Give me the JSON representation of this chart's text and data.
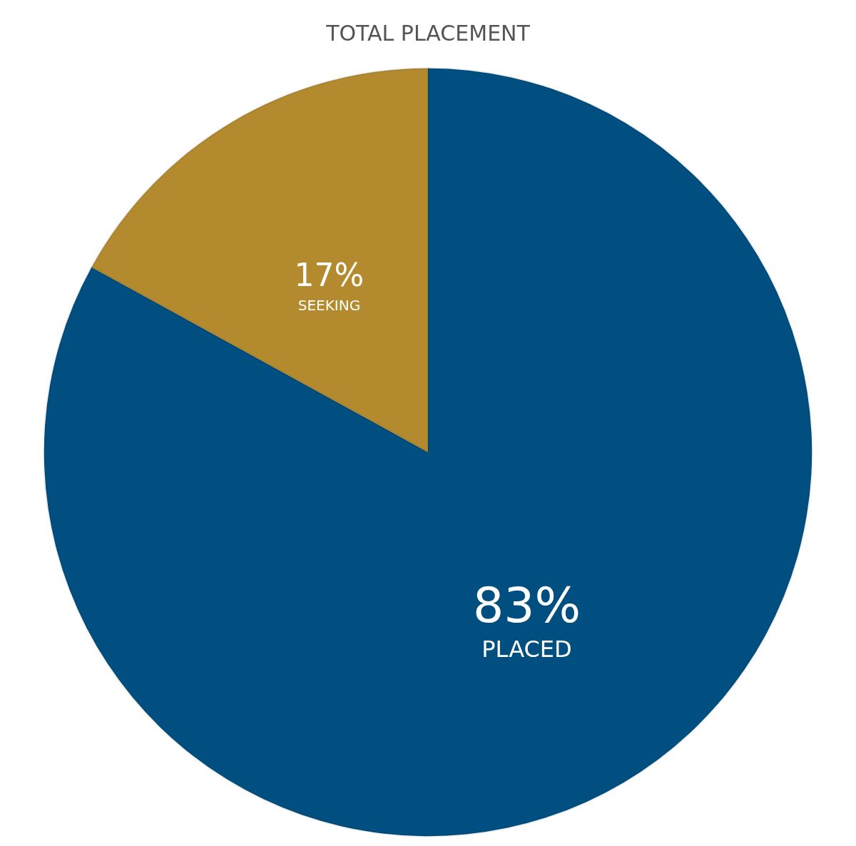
{
  "chart_data": {
    "type": "pie",
    "title": "TOTAL PLACEMENT",
    "categories": [
      "PLACED",
      "SEEKING"
    ],
    "values": [
      83,
      17
    ],
    "colors": [
      "#004f80",
      "#b38b2e"
    ],
    "value_labels": [
      "83%",
      "17%"
    ]
  }
}
